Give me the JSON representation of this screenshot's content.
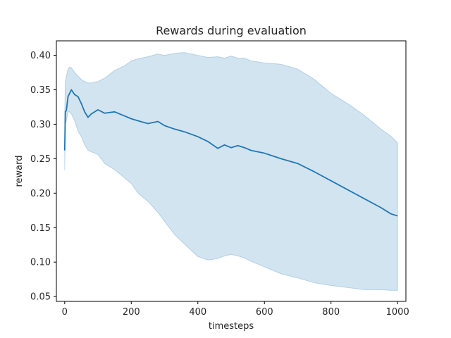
{
  "chart_data": {
    "type": "line",
    "title": "Rewards during evaluation",
    "xlabel": "timesteps",
    "ylabel": "reward",
    "xlim": [
      -25,
      1025
    ],
    "ylim": [
      0.043,
      0.421
    ],
    "x_ticks": [
      0,
      200,
      400,
      600,
      800,
      1000
    ],
    "y_ticks": [
      0.05,
      0.1,
      0.15,
      0.2,
      0.25,
      0.3,
      0.35,
      0.4
    ],
    "grid": false,
    "colors": {
      "line": "#1f77b4",
      "band": "#1f77b4"
    },
    "series": [
      {
        "x": [
          0,
          2,
          5,
          10,
          15,
          20,
          30,
          40,
          50,
          60,
          70,
          80,
          100,
          120,
          150,
          180,
          200,
          220,
          250,
          280,
          300,
          330,
          360,
          400,
          430,
          460,
          480,
          500,
          520,
          540,
          560,
          600,
          650,
          700,
          750,
          800,
          850,
          900,
          950,
          980,
          1000
        ],
        "mean": [
          0.262,
          0.318,
          0.32,
          0.34,
          0.345,
          0.35,
          0.343,
          0.34,
          0.33,
          0.318,
          0.31,
          0.315,
          0.321,
          0.316,
          0.318,
          0.312,
          0.308,
          0.305,
          0.301,
          0.304,
          0.298,
          0.293,
          0.289,
          0.282,
          0.275,
          0.265,
          0.27,
          0.266,
          0.269,
          0.266,
          0.262,
          0.258,
          0.25,
          0.243,
          0.231,
          0.218,
          0.205,
          0.192,
          0.179,
          0.17,
          0.167
        ],
        "upper": [
          0.316,
          0.36,
          0.37,
          0.38,
          0.383,
          0.382,
          0.375,
          0.37,
          0.365,
          0.362,
          0.36,
          0.36,
          0.362,
          0.367,
          0.378,
          0.385,
          0.392,
          0.395,
          0.398,
          0.402,
          0.4,
          0.403,
          0.404,
          0.4,
          0.397,
          0.398,
          0.396,
          0.399,
          0.396,
          0.396,
          0.392,
          0.389,
          0.387,
          0.38,
          0.365,
          0.345,
          0.33,
          0.313,
          0.293,
          0.283,
          0.273
        ],
        "lower": [
          0.233,
          0.3,
          0.305,
          0.318,
          0.318,
          0.315,
          0.305,
          0.29,
          0.282,
          0.27,
          0.262,
          0.26,
          0.256,
          0.243,
          0.234,
          0.222,
          0.214,
          0.2,
          0.188,
          0.172,
          0.159,
          0.14,
          0.126,
          0.108,
          0.103,
          0.105,
          0.109,
          0.111,
          0.109,
          0.106,
          0.101,
          0.093,
          0.083,
          0.077,
          0.07,
          0.066,
          0.063,
          0.06,
          0.06,
          0.059,
          0.059
        ]
      }
    ]
  }
}
